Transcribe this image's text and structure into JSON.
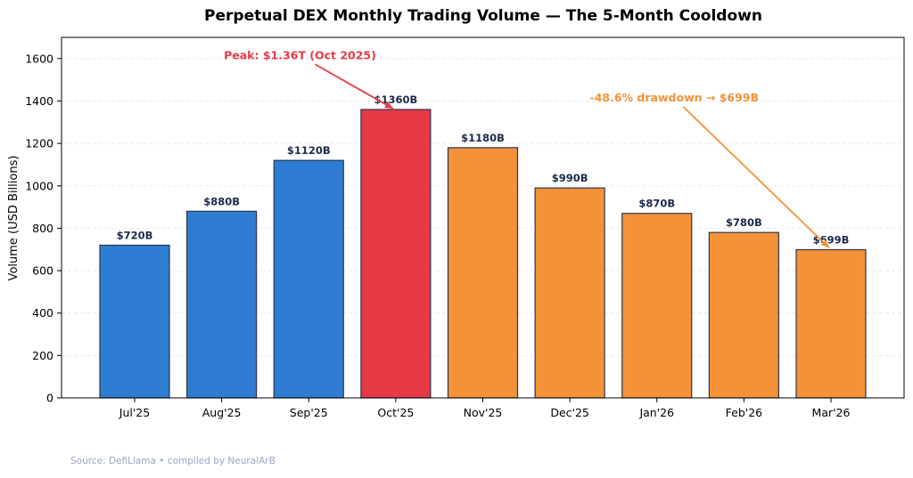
{
  "chart_data": {
    "type": "bar",
    "title": "Perpetual DEX Monthly Trading Volume — The 5-Month Cooldown",
    "xlabel": "",
    "ylabel": "Volume (USD Billions)",
    "ylim": [
      0,
      1700
    ],
    "yticks": [
      0,
      200,
      400,
      600,
      800,
      1000,
      1200,
      1400,
      1600
    ],
    "grid": "y-dashed",
    "categories": [
      "Jul'25",
      "Aug'25",
      "Sep'25",
      "Oct'25",
      "Nov'25",
      "Dec'25",
      "Jan'26",
      "Feb'26",
      "Mar'26"
    ],
    "values": [
      720,
      880,
      1120,
      1360,
      1180,
      990,
      870,
      780,
      699
    ],
    "data_labels": [
      "$720B",
      "$880B",
      "$1120B",
      "$1360B",
      "$1180B",
      "$990B",
      "$870B",
      "$780B",
      "$699B"
    ],
    "bar_colors": [
      "#2e7dd2",
      "#2e7dd2",
      "#2e7dd2",
      "#e63946",
      "#f39237",
      "#f39237",
      "#f39237",
      "#f39237",
      "#f39237"
    ],
    "edge_color": "#2b3553",
    "label_color": "#1b2a4a",
    "annotations": [
      {
        "text": "Peak: $1.36T (Oct 2025)",
        "target_category": "Oct'25",
        "target_value": 1360,
        "text_at": {
          "category_index": 1.9,
          "value": 1615
        },
        "color": "#e63946"
      },
      {
        "text": "-48.6% drawdown → $699B",
        "target_category": "Mar'26",
        "target_value": 699,
        "text_at": {
          "category_index": 6.2,
          "value": 1415
        },
        "color": "#f39237"
      }
    ],
    "source": "Source: DefiLlama • compiled by NeuralArB"
  }
}
